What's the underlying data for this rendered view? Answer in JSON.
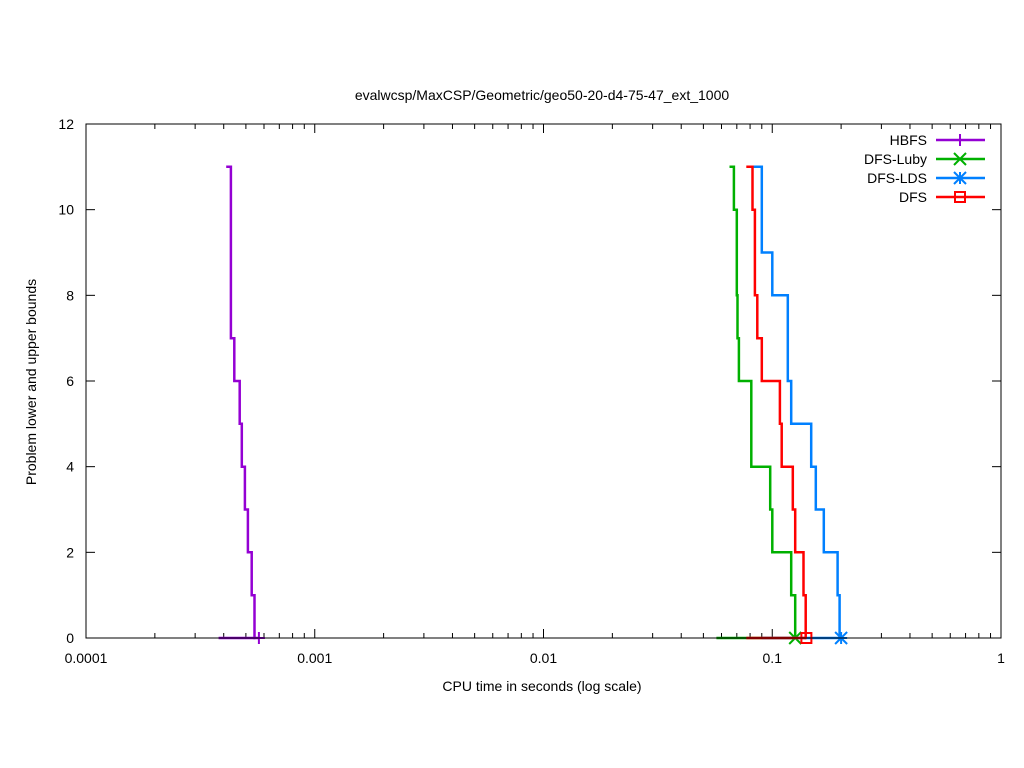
{
  "chart_data": {
    "type": "line",
    "title": "evalwcsp/MaxCSP/Geometric/geo50-20-d4-75-47_ext_1000",
    "xlabel": "CPU time in seconds (log scale)",
    "ylabel": "Problem lower and upper bounds",
    "xscale": "log",
    "xlim": [
      0.0001,
      1
    ],
    "ylim": [
      0,
      12
    ],
    "xticks": [
      0.0001,
      0.001,
      0.01,
      0.1,
      1
    ],
    "xtick_labels": [
      "0.0001",
      "0.001",
      "0.01",
      "0.1",
      "1"
    ],
    "yticks": [
      0,
      2,
      4,
      6,
      8,
      10,
      12
    ],
    "ytick_labels": [
      "0",
      "2",
      "4",
      "6",
      "8",
      "10",
      "12"
    ],
    "legend_position": "top-right",
    "series": [
      {
        "name": "HBFS",
        "color": "#9400d3",
        "marker": "plus",
        "lower": [
          [
            0.00038,
            0
          ],
          [
            0.00055,
            0
          ]
        ],
        "upper": [
          [
            0.00041,
            11
          ],
          [
            0.00043,
            11
          ],
          [
            0.00043,
            7
          ],
          [
            0.000445,
            7
          ],
          [
            0.000445,
            6
          ],
          [
            0.00047,
            6
          ],
          [
            0.00047,
            5
          ],
          [
            0.00048,
            5
          ],
          [
            0.00048,
            4
          ],
          [
            0.000495,
            4
          ],
          [
            0.000495,
            3
          ],
          [
            0.00051,
            3
          ],
          [
            0.00051,
            2
          ],
          [
            0.00053,
            2
          ],
          [
            0.00053,
            1
          ],
          [
            0.000545,
            1
          ],
          [
            0.000545,
            0
          ],
          [
            0.00057,
            0
          ]
        ],
        "final": 0.00057
      },
      {
        "name": "DFS-Luby",
        "color": "#00b000",
        "marker": "x",
        "lower": [
          [
            0.057,
            0
          ],
          [
            0.123,
            0
          ]
        ],
        "upper": [
          [
            0.065,
            11
          ],
          [
            0.068,
            11
          ],
          [
            0.068,
            10
          ],
          [
            0.07,
            10
          ],
          [
            0.07,
            8
          ],
          [
            0.0705,
            8
          ],
          [
            0.0705,
            7
          ],
          [
            0.0715,
            7
          ],
          [
            0.0715,
            6
          ],
          [
            0.081,
            6
          ],
          [
            0.081,
            4
          ],
          [
            0.098,
            4
          ],
          [
            0.098,
            3
          ],
          [
            0.1,
            3
          ],
          [
            0.1,
            2
          ],
          [
            0.121,
            2
          ],
          [
            0.121,
            1
          ],
          [
            0.126,
            1
          ],
          [
            0.126,
            0
          ],
          [
            0.127,
            0
          ]
        ],
        "final": 0.126
      },
      {
        "name": "DFS-LDS",
        "color": "#0080ff",
        "marker": "star",
        "lower": [
          [
            0.09,
            0
          ],
          [
            0.2,
            0
          ]
        ],
        "upper": [
          [
            0.079,
            11
          ],
          [
            0.09,
            11
          ],
          [
            0.09,
            9
          ],
          [
            0.1,
            9
          ],
          [
            0.1,
            8
          ],
          [
            0.117,
            8
          ],
          [
            0.117,
            6
          ],
          [
            0.121,
            6
          ],
          [
            0.121,
            5
          ],
          [
            0.148,
            5
          ],
          [
            0.148,
            4
          ],
          [
            0.155,
            4
          ],
          [
            0.155,
            3
          ],
          [
            0.168,
            3
          ],
          [
            0.168,
            2
          ],
          [
            0.193,
            2
          ],
          [
            0.193,
            1
          ],
          [
            0.197,
            1
          ],
          [
            0.197,
            0
          ],
          [
            0.2,
            0
          ]
        ],
        "final": 0.2
      },
      {
        "name": "DFS",
        "color": "#ff0000",
        "marker": "square",
        "lower": [
          [
            0.077,
            0
          ],
          [
            0.141,
            0
          ]
        ],
        "upper": [
          [
            0.077,
            11
          ],
          [
            0.082,
            11
          ],
          [
            0.082,
            10
          ],
          [
            0.084,
            10
          ],
          [
            0.084,
            8
          ],
          [
            0.086,
            8
          ],
          [
            0.086,
            7
          ],
          [
            0.09,
            7
          ],
          [
            0.09,
            6
          ],
          [
            0.108,
            6
          ],
          [
            0.108,
            5
          ],
          [
            0.11,
            5
          ],
          [
            0.11,
            4
          ],
          [
            0.123,
            4
          ],
          [
            0.123,
            3
          ],
          [
            0.126,
            3
          ],
          [
            0.126,
            2
          ],
          [
            0.137,
            2
          ],
          [
            0.137,
            1
          ],
          [
            0.14,
            1
          ],
          [
            0.14,
            0
          ],
          [
            0.141,
            0
          ]
        ],
        "final": 0.141
      }
    ]
  }
}
